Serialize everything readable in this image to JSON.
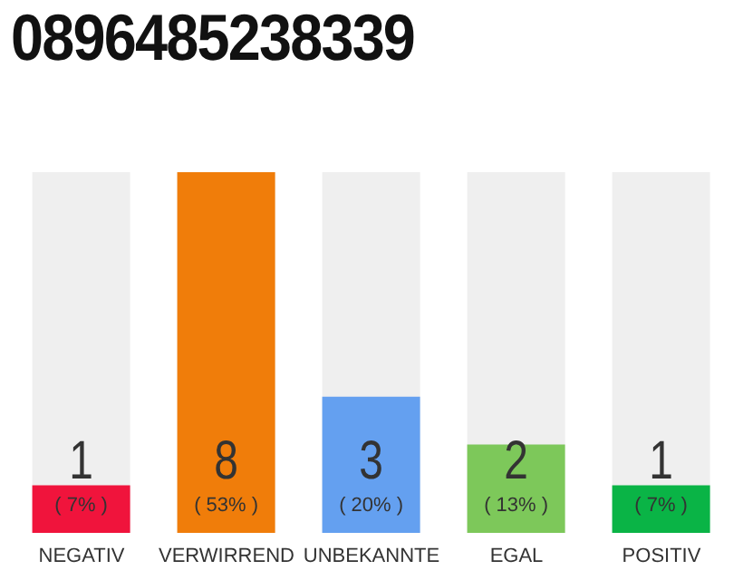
{
  "chart_data": {
    "type": "bar",
    "title": "0896485238339",
    "categories": [
      "NEGATIV",
      "VERWIRREND",
      "UNBEKANNTE",
      "EGAL",
      "POSITIV"
    ],
    "values": [
      7,
      53,
      20,
      13,
      7
    ],
    "colors": [
      "#f0143c",
      "#f07d0a",
      "#64a0f0",
      "#7dc85a",
      "#0ab446"
    ],
    "value_labels": [
      "( 7% )",
      "( 53% )",
      "( 20% )",
      "( 13% )",
      "( 7% )"
    ],
    "annotations": [
      "1",
      "8",
      "3",
      "2",
      "1"
    ],
    "tick_labels": "x"
  }
}
